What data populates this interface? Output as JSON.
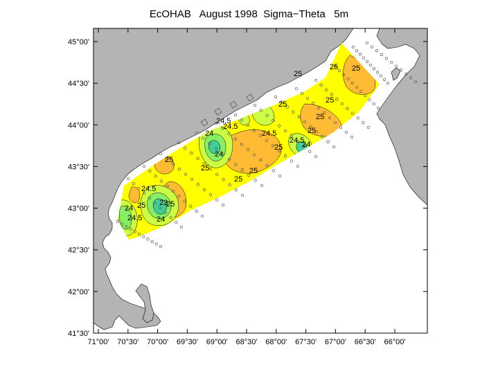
{
  "title": "EcOHAB   August 1998  Sigma−Theta   5m",
  "lat_ticks": [
    "45°00'",
    "44°30'",
    "44°00'",
    "43°30'",
    "43°00'",
    "42°30'",
    "42°00'",
    "41°30'"
  ],
  "lon_ticks": [
    "71°00'",
    "70°30'",
    "70°00'",
    "69°30'",
    "69°00'",
    "68°30'",
    "68°00'",
    "67°30'",
    "67°00'",
    "66°30'",
    "66°00'"
  ],
  "contour_labels": [
    "25",
    "25",
    "25",
    "24.5",
    "24",
    "24",
    "24.5",
    "25",
    "25",
    "25",
    "25",
    "24.5",
    "24",
    "25",
    "25",
    "24.5",
    "23",
    "24",
    "25",
    "24",
    "24.5",
    "25",
    "25",
    "25",
    "24.5",
    "25"
  ],
  "colors": {
    "land": "#b4b4b4",
    "water": "#ffffff",
    "field_base": "#ffff00",
    "field_warm": "#ffbb33",
    "field_light": "#ccff44",
    "field_mid": "#88ee66",
    "field_cool": "#44cc99",
    "field_core": "#22bbaa",
    "station": "#555555"
  }
}
